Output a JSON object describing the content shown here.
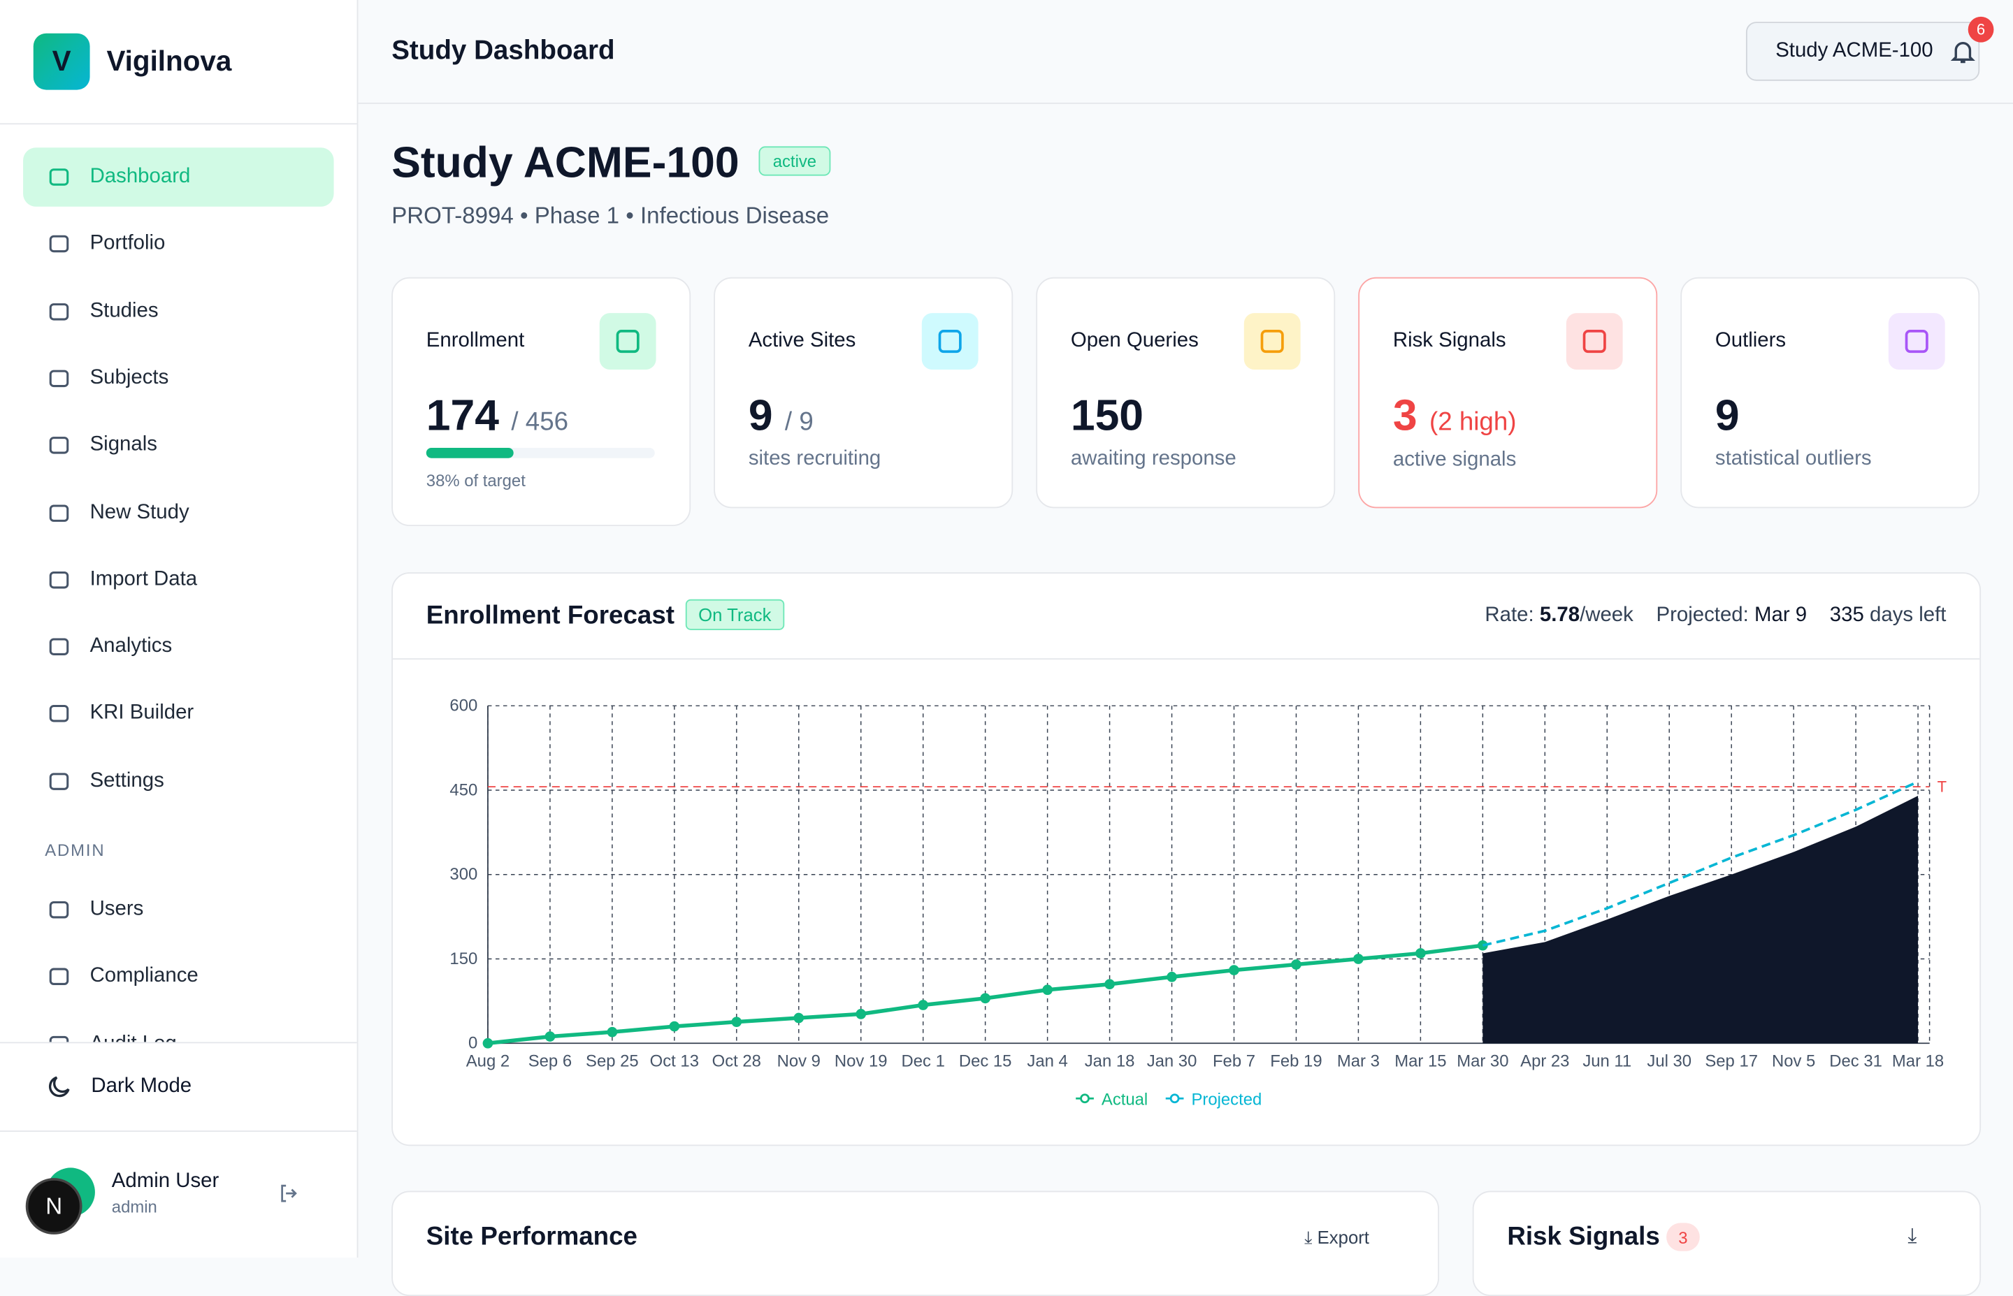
{
  "sidebar": {
    "brand_initial": "V",
    "brand": "Vigilnova",
    "nav": [
      {
        "label": "Dashboard",
        "active": true
      },
      {
        "label": "Portfolio"
      },
      {
        "label": "Studies"
      },
      {
        "label": "Subjects"
      },
      {
        "label": "Signals"
      },
      {
        "label": "New Study"
      },
      {
        "label": "Import Data"
      },
      {
        "label": "Analytics"
      },
      {
        "label": "KRI Builder"
      },
      {
        "label": "Settings"
      }
    ],
    "admin_heading": "ADMIN",
    "admin_nav": [
      {
        "label": "Users"
      },
      {
        "label": "Compliance"
      },
      {
        "label": "Audit Log"
      }
    ],
    "dark_mode": "Dark Mode",
    "user": {
      "initial": "N",
      "name": "Admin User",
      "role": "admin"
    }
  },
  "header": {
    "title": "Study Dashboard",
    "study_button": "Study ACME-100",
    "notifications": 6
  },
  "study": {
    "title": "Study ACME-100",
    "status": "active",
    "subtitle": "PROT-8994 • Phase 1 • Infectious Disease"
  },
  "cards": [
    {
      "label": "Enrollment",
      "value": 174,
      "total": "/ 456",
      "progress": 38,
      "caption": "38% of target",
      "color": "#10b981",
      "tint": "#d1fae5"
    },
    {
      "label": "Active Sites",
      "value": 9,
      "total": "/ 9",
      "caption": "sites recruiting",
      "color": "#0ea5e9",
      "tint": "#cffafe"
    },
    {
      "label": "Open Queries",
      "value": 150,
      "caption": "awaiting response",
      "color": "#f59e0b",
      "tint": "#fef3c7"
    },
    {
      "label": "Risk Signals",
      "value": 3,
      "extra": "(2 high)",
      "caption": "active signals",
      "color": "#ef4444",
      "tint": "#fee2e2",
      "alert": true
    },
    {
      "label": "Outliers",
      "value": 9,
      "caption": "statistical outliers",
      "color": "#a855f7",
      "tint": "#f3e8ff"
    }
  ],
  "forecast": {
    "title": "Enrollment Forecast",
    "badge": "On Track",
    "rate_label": "Rate:",
    "rate": "5.78",
    "rate_unit": "/week",
    "projected_label": "Projected:",
    "projected": "Mar 9",
    "days": "335",
    "days_label": "days left"
  },
  "chart_data": {
    "type": "line",
    "categories": [
      "Aug 2",
      "Sep 6",
      "Sep 25",
      "Oct 13",
      "Oct 28",
      "Nov 9",
      "Nov 19",
      "Dec 1",
      "Dec 15",
      "Jan 4",
      "Jan 18",
      "Jan 30",
      "Feb 7",
      "Feb 19",
      "Mar 3",
      "Mar 15",
      "Mar 30",
      "Apr 23",
      "Jun 11",
      "Jul 30",
      "Sep 17",
      "Nov 5",
      "Dec 31",
      "Mar 18"
    ],
    "series": [
      {
        "name": "Actual",
        "color": "#10b981",
        "values": [
          0,
          12,
          20,
          30,
          38,
          45,
          52,
          68,
          80,
          95,
          105,
          118,
          130,
          140,
          150,
          160,
          174,
          null,
          null,
          null,
          null,
          null,
          null,
          null
        ]
      },
      {
        "name": "Projected",
        "color": "#06b6d4",
        "values": [
          null,
          null,
          null,
          null,
          null,
          null,
          null,
          null,
          null,
          null,
          null,
          null,
          null,
          null,
          null,
          null,
          174,
          200,
          240,
          285,
          330,
          370,
          415,
          465
        ]
      }
    ],
    "projected_low": [
      null,
      null,
      null,
      null,
      null,
      null,
      null,
      null,
      null,
      null,
      null,
      null,
      null,
      null,
      null,
      null,
      160,
      180,
      220,
      262,
      300,
      340,
      385,
      440
    ],
    "projected_low_color": "#0f172a",
    "target": 456,
    "target_label": "T",
    "target_color": "#ef4444",
    "ylim": [
      0,
      600
    ],
    "yticks": [
      0,
      150,
      300,
      450,
      600
    ],
    "grid": true
  },
  "site_performance": {
    "title": "Site Performance",
    "export": "Export"
  },
  "risk_signals": {
    "title": "Risk Signals",
    "count": 3
  }
}
